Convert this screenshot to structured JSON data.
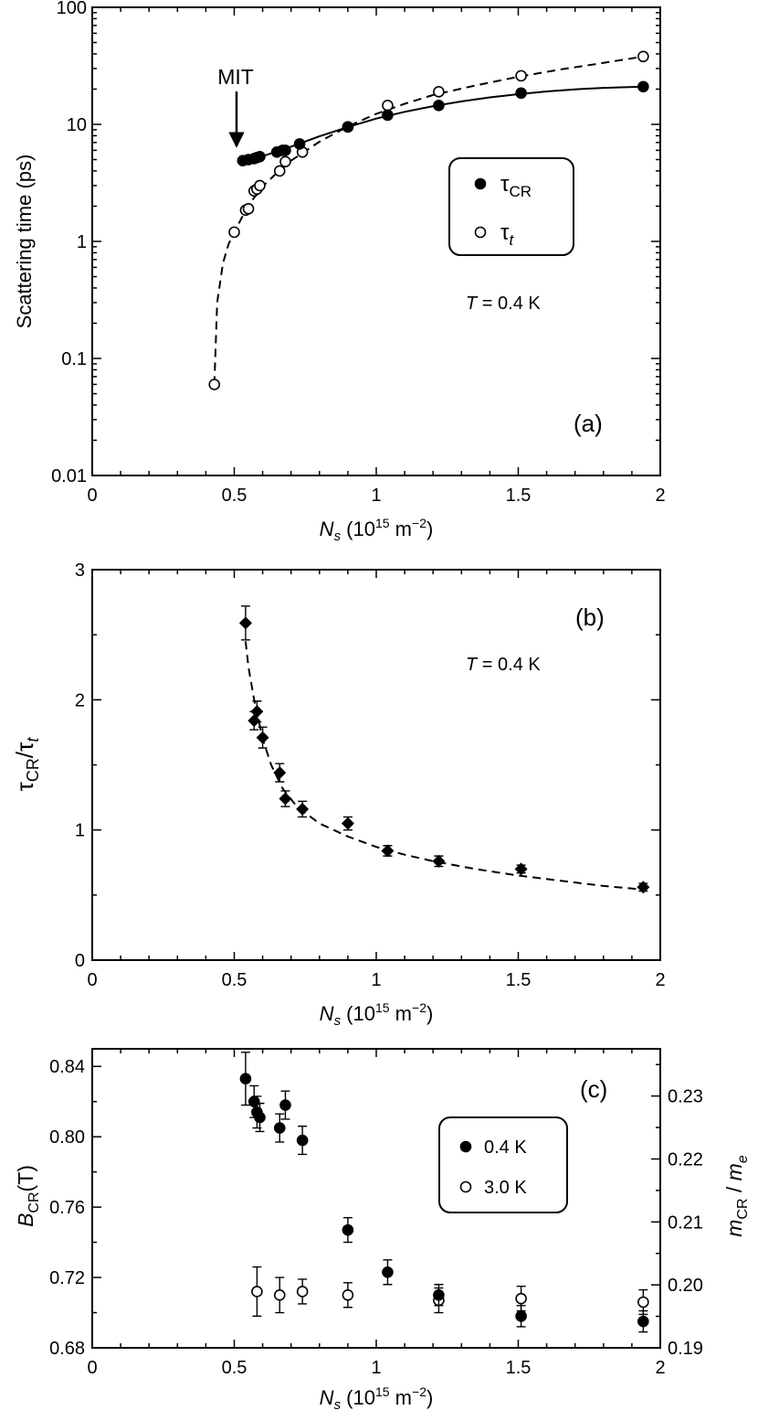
{
  "chart_data": [
    {
      "id": "a",
      "type": "scatter",
      "panel_label": "(a)",
      "xlabel": {
        "var": "N",
        "sub": "s",
        "unit_open": " (10",
        "exp": "15",
        "unit_mid": " m",
        "exp2": "−2",
        "unit_close": ")"
      },
      "ylabel": "Scattering time (ps)",
      "yscale": "log",
      "xlim": [
        0,
        2
      ],
      "ylim": [
        0.01,
        100
      ],
      "xticks": [
        "0",
        "0.5",
        "1",
        "1.5",
        "2"
      ],
      "yticks": [
        "0.01",
        "0.1",
        "1",
        "10",
        "100"
      ],
      "annotation": "MIT",
      "temperature": {
        "var": "T",
        "rest": " = 0.4 K"
      },
      "series": [
        {
          "name": "τCR",
          "symbol": "τ",
          "sub": "CR",
          "marker": "filled-circle",
          "x": [
            0.53,
            0.55,
            0.57,
            0.58,
            0.59,
            0.65,
            0.67,
            0.68,
            0.73,
            0.9,
            1.04,
            1.22,
            1.51,
            1.94
          ],
          "y": [
            4.9,
            5.0,
            5.1,
            5.2,
            5.3,
            5.8,
            6.0,
            6.0,
            6.8,
            9.5,
            12.0,
            14.5,
            18.5,
            21.0
          ]
        },
        {
          "name": "τt",
          "symbol": "τ",
          "sub": "t",
          "marker": "open-circle",
          "x": [
            0.43,
            0.5,
            0.54,
            0.55,
            0.57,
            0.58,
            0.59,
            0.66,
            0.68,
            0.74,
            0.9,
            1.04,
            1.22,
            1.51,
            1.94
          ],
          "y": [
            0.06,
            1.2,
            1.85,
            1.9,
            2.7,
            2.8,
            3.0,
            4.0,
            4.8,
            5.8,
            9.5,
            14.5,
            19.0,
            26.0,
            38.0
          ]
        }
      ],
      "fits": [
        {
          "name": "τCR fit",
          "style": "solid",
          "x": [
            0.53,
            0.6,
            0.7,
            0.8,
            0.9,
            1.0,
            1.1,
            1.2,
            1.3,
            1.4,
            1.5,
            1.6,
            1.7,
            1.8,
            1.94
          ],
          "y": [
            4.9,
            5.35,
            6.45,
            7.9,
            9.5,
            11.2,
            12.8,
            14.3,
            15.7,
            17.0,
            18.1,
            19.1,
            19.9,
            20.5,
            21.0
          ]
        },
        {
          "name": "τt fit",
          "style": "dashed",
          "x": [
            0.43,
            0.44,
            0.46,
            0.48,
            0.5,
            0.53,
            0.56,
            0.6,
            0.65,
            0.7,
            0.8,
            0.9,
            1.0,
            1.1,
            1.2,
            1.35,
            1.5,
            1.65,
            1.8,
            1.94
          ],
          "y": [
            0.06,
            0.3,
            0.65,
            0.95,
            1.2,
            1.65,
            2.2,
            2.95,
            3.85,
            4.9,
            7.1,
            9.6,
            12.3,
            15.0,
            17.8,
            21.5,
            25.5,
            29.5,
            33.5,
            38.0
          ]
        }
      ]
    },
    {
      "id": "b",
      "type": "scatter",
      "panel_label": "(b)",
      "xlabel": {
        "var": "N",
        "sub": "s",
        "unit_open": " (10",
        "exp": "15",
        "unit_mid": " m",
        "exp2": "−2",
        "unit_close": ")"
      },
      "ylabel": {
        "s1": "τ",
        "sub1": "CR",
        "slash": "/",
        "s2": "τ",
        "sub2": "t"
      },
      "xlim": [
        0,
        2
      ],
      "ylim": [
        0,
        3
      ],
      "xticks": [
        "0",
        "0.5",
        "1",
        "1.5",
        "2"
      ],
      "yticks": [
        "0",
        "1",
        "2",
        "3"
      ],
      "temperature": {
        "var": "T",
        "rest": " = 0.4 K"
      },
      "series": [
        {
          "name": "τCR/τt",
          "marker": "filled-diamond",
          "x": [
            0.54,
            0.57,
            0.58,
            0.6,
            0.66,
            0.68,
            0.74,
            0.9,
            1.04,
            1.22,
            1.51,
            1.94
          ],
          "y": [
            2.59,
            1.84,
            1.91,
            1.71,
            1.44,
            1.24,
            1.16,
            1.05,
            0.84,
            0.76,
            0.7,
            0.56
          ],
          "err": [
            0.13,
            0.07,
            0.08,
            0.08,
            0.07,
            0.06,
            0.06,
            0.05,
            0.04,
            0.04,
            0.03,
            0.03
          ]
        }
      ],
      "fits": [
        {
          "name": "guide",
          "style": "dashed",
          "x": [
            0.54,
            0.55,
            0.57,
            0.6,
            0.63,
            0.67,
            0.72,
            0.8,
            0.9,
            1.0,
            1.1,
            1.2,
            1.35,
            1.5,
            1.65,
            1.8,
            1.95
          ],
          "y": [
            2.45,
            2.25,
            2.0,
            1.7,
            1.5,
            1.32,
            1.18,
            1.05,
            0.95,
            0.87,
            0.81,
            0.76,
            0.7,
            0.65,
            0.61,
            0.57,
            0.54
          ]
        }
      ]
    },
    {
      "id": "c",
      "type": "scatter",
      "panel_label": "(c)",
      "xlabel": {
        "var": "N",
        "sub": "s",
        "unit_open": " (10",
        "exp": "15",
        "unit_mid": " m",
        "exp2": "−2",
        "unit_close": ")"
      },
      "ylabel": {
        "var": "B",
        "sub": "CR",
        "rest": "(T)"
      },
      "y2label": {
        "var": "m",
        "sub": "CR",
        "slash": " / ",
        "var2": "m",
        "sub2": "e"
      },
      "xlim": [
        0,
        2
      ],
      "ylim": [
        0.68,
        0.85
      ],
      "y2lim": [
        0.19,
        0.2375
      ],
      "xticks": [
        "0",
        "0.5",
        "1",
        "1.5",
        "2"
      ],
      "yticks": [
        "0.68",
        "0.72",
        "0.76",
        "0.80",
        "0.84"
      ],
      "y2ticks": [
        "0.19",
        "0.20",
        "0.21",
        "0.22",
        "0.23"
      ],
      "series": [
        {
          "name": "0.4 K",
          "marker": "filled-circle",
          "x": [
            0.54,
            0.57,
            0.58,
            0.59,
            0.66,
            0.68,
            0.74,
            0.9,
            1.04,
            1.22,
            1.51,
            1.94
          ],
          "y": [
            0.833,
            0.82,
            0.814,
            0.811,
            0.805,
            0.818,
            0.798,
            0.747,
            0.723,
            0.71,
            0.698,
            0.695
          ],
          "err": [
            0.015,
            0.009,
            0.009,
            0.008,
            0.008,
            0.008,
            0.008,
            0.007,
            0.007,
            0.006,
            0.006,
            0.006
          ]
        },
        {
          "name": "3.0 K",
          "marker": "open-circle",
          "x": [
            0.58,
            0.66,
            0.74,
            0.9,
            1.22,
            1.51,
            1.94
          ],
          "y": [
            0.712,
            0.71,
            0.712,
            0.71,
            0.707,
            0.708,
            0.706
          ],
          "err": [
            0.014,
            0.01,
            0.007,
            0.007,
            0.007,
            0.007,
            0.007
          ]
        }
      ]
    }
  ]
}
